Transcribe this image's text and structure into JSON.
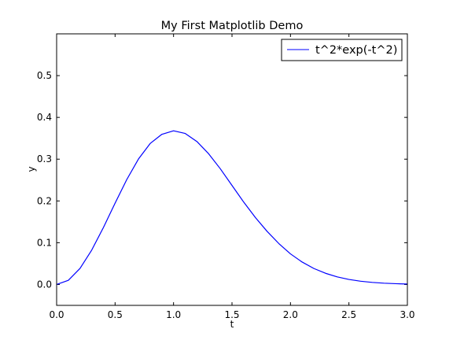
{
  "chart_data": {
    "type": "line",
    "title": "My First Matplotlib Demo",
    "xlabel": "t",
    "ylabel": "y",
    "xlim": [
      0.0,
      3.0
    ],
    "ylim": [
      -0.05,
      0.6
    ],
    "grid": false,
    "legend_position": "top-right",
    "x_ticks": [
      0.0,
      0.5,
      1.0,
      1.5,
      2.0,
      2.5,
      3.0
    ],
    "x_tick_labels": [
      "0.0",
      "0.5",
      "1.0",
      "1.5",
      "2.0",
      "2.5",
      "3.0"
    ],
    "y_ticks": [
      0.0,
      0.1,
      0.2,
      0.3,
      0.4,
      0.5
    ],
    "y_tick_labels": [
      "0.0",
      "0.1",
      "0.2",
      "0.3",
      "0.4",
      "0.5"
    ],
    "series": [
      {
        "name": "t^2*exp(-t^2)",
        "color": "#0000ff",
        "x": [
          0.0,
          0.1,
          0.2,
          0.3,
          0.4,
          0.5,
          0.6,
          0.7,
          0.8,
          0.9,
          1.0,
          1.1,
          1.2,
          1.3,
          1.4,
          1.5,
          1.6,
          1.7,
          1.8,
          1.9,
          2.0,
          2.1,
          2.2,
          2.3,
          2.4,
          2.5,
          2.6,
          2.7,
          2.8,
          2.9,
          3.0
        ],
        "y": [
          0.0,
          0.0099,
          0.0384,
          0.0823,
          0.1363,
          0.1947,
          0.2512,
          0.3004,
          0.3375,
          0.3595,
          0.3679,
          0.3615,
          0.3422,
          0.313,
          0.277,
          0.2371,
          0.1972,
          0.1603,
          0.1272,
          0.0981,
          0.0733,
          0.0537,
          0.0383,
          0.0268,
          0.0181,
          0.012,
          0.0078,
          0.005,
          0.0031,
          0.0019,
          0.0011
        ]
      }
    ]
  }
}
